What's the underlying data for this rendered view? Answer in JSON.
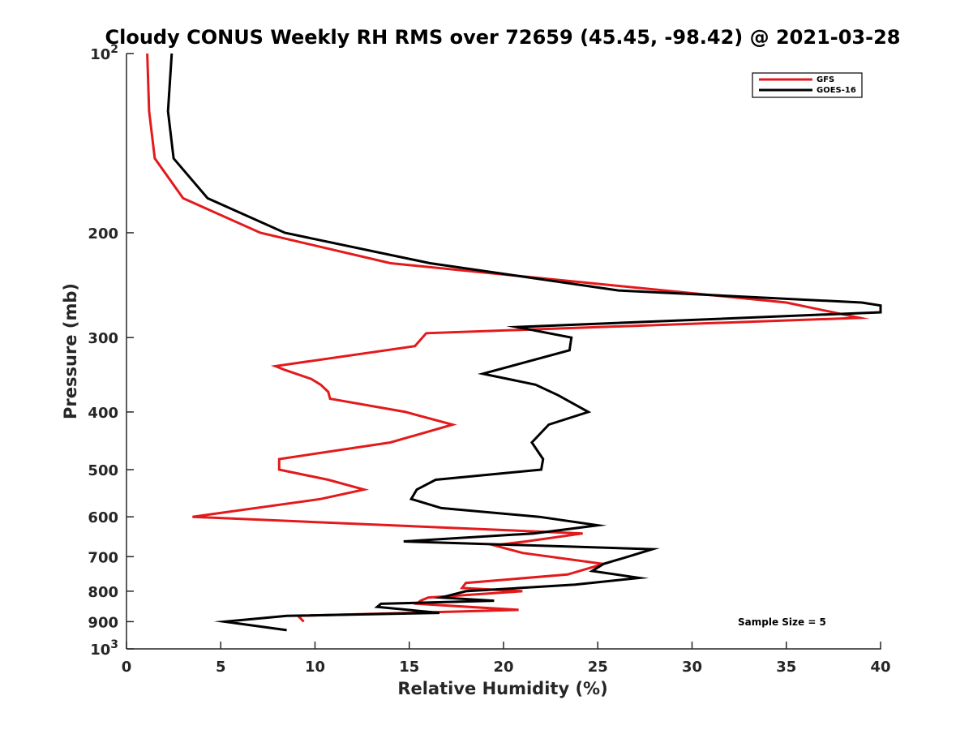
{
  "chart_data": {
    "type": "line",
    "title": "Cloudy CONUS Weekly RH RMS over 72659 (45.45, -98.42) @ 2021-03-28",
    "xlabel": "Relative Humidity (%)",
    "ylabel": "Pressure (mb)",
    "xlim": [
      0,
      40
    ],
    "ylim": [
      100,
      1000
    ],
    "yscale": "log",
    "y_reversed": true,
    "grid": false,
    "legend_position": "top-right",
    "x_ticks": [
      {
        "value": 0,
        "label": "0"
      },
      {
        "value": 5,
        "label": "5"
      },
      {
        "value": 10,
        "label": "10"
      },
      {
        "value": 15,
        "label": "15"
      },
      {
        "value": 20,
        "label": "20"
      },
      {
        "value": 25,
        "label": "25"
      },
      {
        "value": 30,
        "label": "30"
      },
      {
        "value": 35,
        "label": "35"
      },
      {
        "value": 40,
        "label": "40"
      }
    ],
    "y_ticks": [
      {
        "value": 100,
        "base": "10",
        "exp": "2"
      },
      {
        "value": 200,
        "label": "200"
      },
      {
        "value": 300,
        "label": "300"
      },
      {
        "value": 400,
        "label": "400"
      },
      {
        "value": 500,
        "label": "500"
      },
      {
        "value": 600,
        "label": "600"
      },
      {
        "value": 700,
        "label": "700"
      },
      {
        "value": 800,
        "label": "800"
      },
      {
        "value": 900,
        "label": "900"
      },
      {
        "value": 1000,
        "base": "10",
        "exp": "3"
      }
    ],
    "series": [
      {
        "name": "GFS",
        "color": "#e31a1c",
        "points": [
          [
            1.1,
            100
          ],
          [
            1.2,
            125
          ],
          [
            1.5,
            150
          ],
          [
            3.0,
            175
          ],
          [
            7.1,
            200
          ],
          [
            14.0,
            225
          ],
          [
            35.0,
            262
          ],
          [
            38.9,
            278
          ],
          [
            15.9,
            295
          ],
          [
            15.3,
            310
          ],
          [
            7.9,
            335
          ],
          [
            8.4,
            340
          ],
          [
            9.8,
            352
          ],
          [
            10.3,
            360
          ],
          [
            10.7,
            370
          ],
          [
            10.8,
            380
          ],
          [
            14.8,
            400
          ],
          [
            17.3,
            420
          ],
          [
            14.0,
            450
          ],
          [
            8.1,
            480
          ],
          [
            8.1,
            500
          ],
          [
            10.7,
            520
          ],
          [
            12.6,
            540
          ],
          [
            10.3,
            560
          ],
          [
            3.5,
            600
          ],
          [
            24.2,
            640
          ],
          [
            21.2,
            660
          ],
          [
            19.5,
            670
          ],
          [
            21.0,
            690
          ],
          [
            25.3,
            720
          ],
          [
            23.4,
            750
          ],
          [
            18.0,
            775
          ],
          [
            17.8,
            790
          ],
          [
            21.0,
            800
          ],
          [
            16.0,
            820
          ],
          [
            15.6,
            830
          ],
          [
            15.4,
            840
          ],
          [
            20.8,
            860
          ],
          [
            9.1,
            880
          ],
          [
            9.4,
            900
          ]
        ]
      },
      {
        "name": "GOES-16",
        "color": "#000000",
        "points": [
          [
            2.4,
            100
          ],
          [
            2.2,
            125
          ],
          [
            2.5,
            150
          ],
          [
            4.3,
            175
          ],
          [
            8.4,
            200
          ],
          [
            16.1,
            225
          ],
          [
            26.1,
            250
          ],
          [
            39.0,
            262
          ],
          [
            40.0,
            265
          ],
          [
            40.0,
            272
          ],
          [
            20.7,
            288
          ],
          [
            23.6,
            300
          ],
          [
            23.5,
            315
          ],
          [
            18.9,
            345
          ],
          [
            21.7,
            360
          ],
          [
            22.9,
            375
          ],
          [
            24.5,
            400
          ],
          [
            22.4,
            420
          ],
          [
            21.5,
            450
          ],
          [
            22.1,
            480
          ],
          [
            22.0,
            500
          ],
          [
            16.4,
            520
          ],
          [
            15.4,
            540
          ],
          [
            15.1,
            560
          ],
          [
            16.7,
            580
          ],
          [
            21.9,
            600
          ],
          [
            25.0,
            620
          ],
          [
            21.6,
            640
          ],
          [
            14.7,
            660
          ],
          [
            27.9,
            680
          ],
          [
            26.6,
            700
          ],
          [
            25.3,
            720
          ],
          [
            24.7,
            740
          ],
          [
            27.2,
            760
          ],
          [
            23.8,
            780
          ],
          [
            18.0,
            800
          ],
          [
            16.7,
            820
          ],
          [
            19.5,
            830
          ],
          [
            13.5,
            840
          ],
          [
            13.3,
            850
          ],
          [
            16.6,
            870
          ],
          [
            8.5,
            880
          ],
          [
            5.2,
            900
          ],
          [
            8.5,
            930
          ]
        ]
      }
    ],
    "annotation": "Sample Size = 5"
  }
}
